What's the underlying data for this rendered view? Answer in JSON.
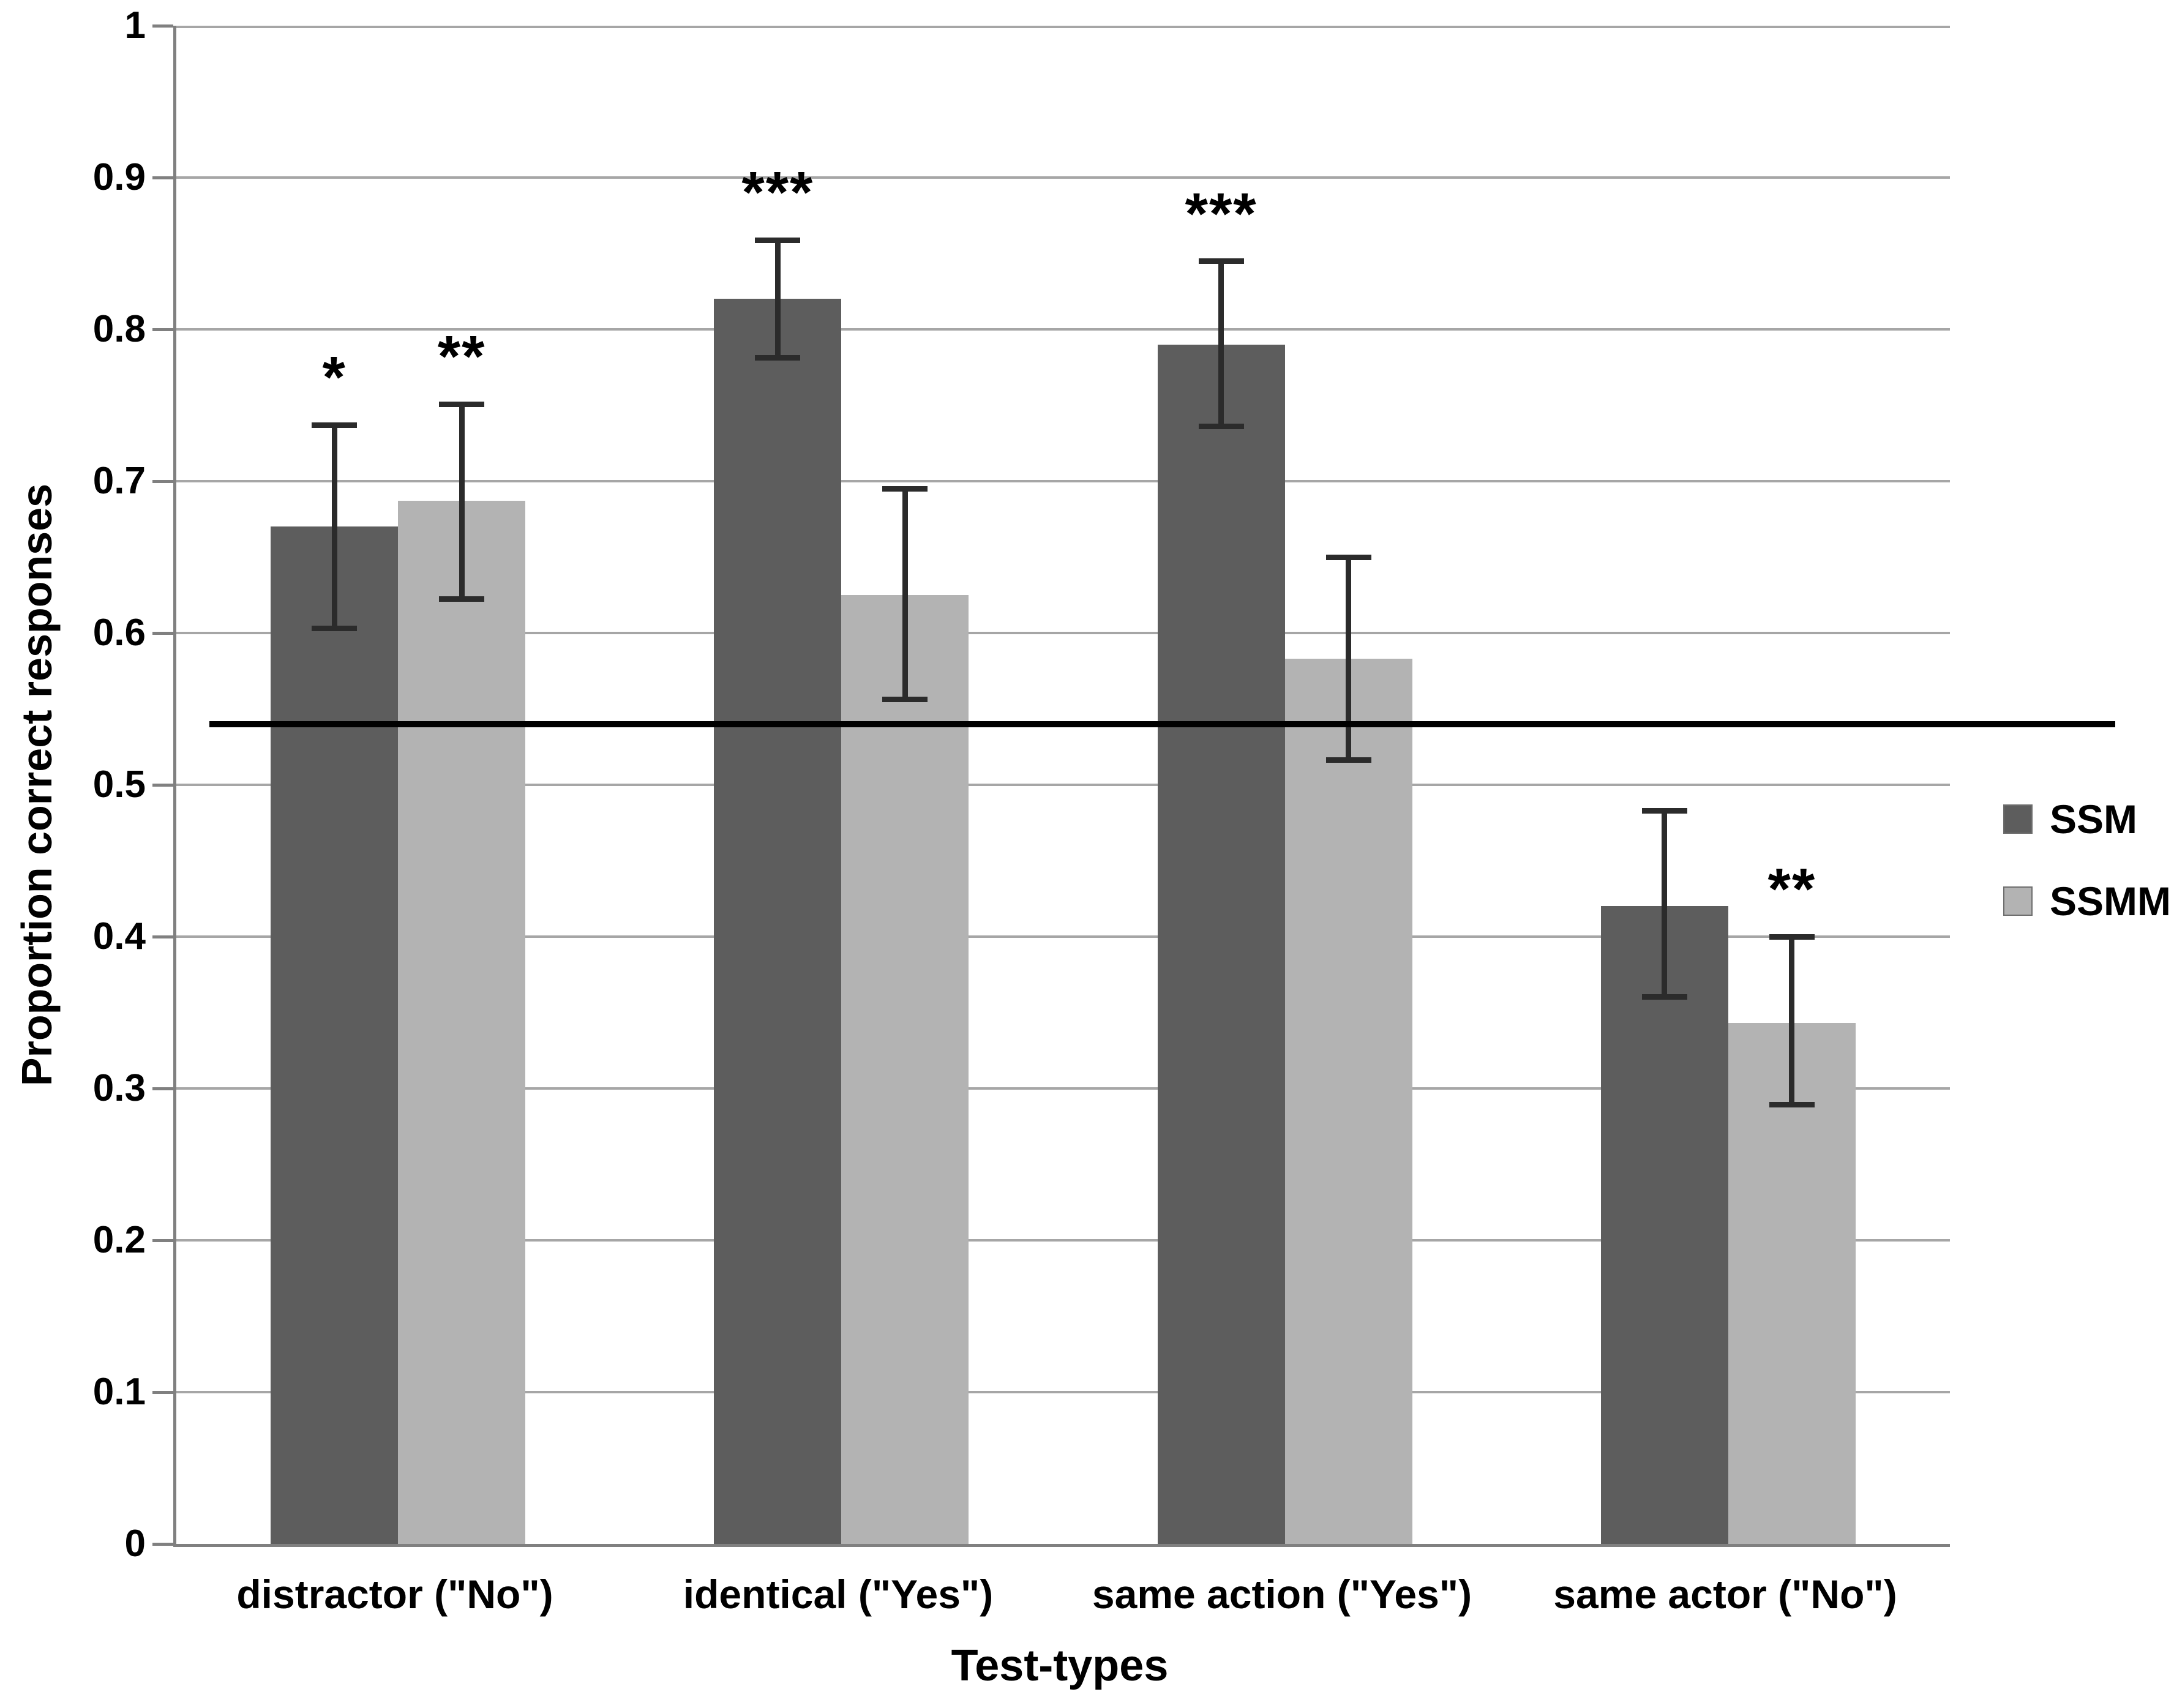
{
  "chart_data": {
    "type": "bar",
    "title": "",
    "xlabel": "Test-types",
    "ylabel": "Proportion correct responses",
    "ylim": [
      0,
      1
    ],
    "ytick_interval": 0.1,
    "ytick_labels": [
      "0",
      "0.1",
      "0.2",
      "0.3",
      "0.4",
      "0.5",
      "0.6",
      "0.7",
      "0.8",
      "0.9",
      "1"
    ],
    "grid": "horizontal",
    "legend_position": "right-middle",
    "categories": [
      "distractor (\"No\")",
      "identical (\"Yes\")",
      "same action (\"Yes\")",
      "same actor (\"No\")"
    ],
    "series": [
      {
        "name": "SSM",
        "color": "#5d5d5d",
        "values": [
          0.67,
          0.82,
          0.79,
          0.42
        ],
        "err_lo": [
          0.603,
          0.781,
          0.736,
          0.36
        ],
        "err_hi": [
          0.737,
          0.859,
          0.845,
          0.483
        ],
        "significance": [
          "*",
          "***",
          "***",
          ""
        ]
      },
      {
        "name": "SSMM",
        "color": "#b3b3b3",
        "values": [
          0.687,
          0.625,
          0.583,
          0.343
        ],
        "err_lo": [
          0.622,
          0.556,
          0.516,
          0.289
        ],
        "err_hi": [
          0.751,
          0.695,
          0.65,
          0.4
        ],
        "significance": [
          "**",
          "",
          "",
          "**"
        ]
      }
    ],
    "reference_line": {
      "value": 0.54,
      "color": "#000000"
    },
    "colors": {
      "gridline": "#a6a6a6",
      "axis": "#808080",
      "error_bar": "#2b2b2b",
      "text": "#000000",
      "background": "#ffffff"
    }
  }
}
